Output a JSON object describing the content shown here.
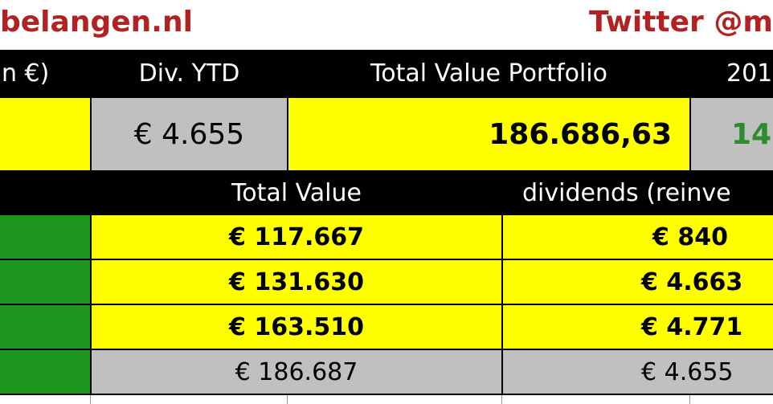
{
  "header": {
    "site_text": "belangen.nl",
    "twitter_text": "Twitter @m"
  },
  "summary": {
    "col0_header": "n €)",
    "div_ytd_header": "Div. YTD",
    "total_value_header": "Total Value Portfolio",
    "year_header": "201",
    "div_ytd_value": "€ 4.655",
    "total_value_value": "186.686,63",
    "year_value": "14,",
    "year_value_color": "#2e8b2e"
  },
  "table": {
    "headers": {
      "total_value": "Total Value",
      "dividends": "dividends (reinve"
    },
    "rows": [
      {
        "total_value": "€ 117.667",
        "dividends": "€ 840",
        "style": "yellow"
      },
      {
        "total_value": "€ 131.630",
        "dividends": "€ 4.663",
        "style": "yellow"
      },
      {
        "total_value": "€ 163.510",
        "dividends": "€ 4.771",
        "style": "yellow"
      },
      {
        "total_value": "€ 186.687",
        "dividends": "€ 4.655",
        "style": "grey"
      }
    ]
  },
  "colors": {
    "brand_red": "#b22222",
    "header_black": "#000000",
    "highlight_yellow": "#ffff00",
    "neutral_grey": "#c0c0c0",
    "status_green": "#1e961e"
  }
}
